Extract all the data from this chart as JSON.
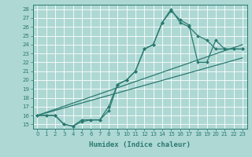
{
  "bg_color": "#aed8d4",
  "grid_color": "#ffffff",
  "line_color": "#2a7a70",
  "xlabel": "Humidex (Indice chaleur)",
  "xlim": [
    -0.5,
    23.5
  ],
  "ylim": [
    14.5,
    28.5
  ],
  "yticks": [
    15,
    16,
    17,
    18,
    19,
    20,
    21,
    22,
    23,
    24,
    25,
    26,
    27,
    28
  ],
  "xticks": [
    0,
    1,
    2,
    3,
    4,
    5,
    6,
    7,
    8,
    9,
    10,
    11,
    12,
    13,
    14,
    15,
    16,
    17,
    18,
    19,
    20,
    21,
    22,
    23
  ],
  "curve1_x": [
    0,
    1,
    2,
    3,
    4,
    5,
    6,
    7,
    8,
    9,
    10,
    11,
    12,
    13,
    14,
    15,
    16,
    17,
    18,
    19,
    20,
    21,
    22,
    23
  ],
  "curve1_y": [
    16.0,
    16.0,
    16.0,
    15.0,
    14.8,
    15.5,
    15.5,
    15.5,
    16.5,
    19.5,
    20.0,
    21.0,
    23.5,
    24.0,
    26.5,
    28.0,
    26.5,
    26.0,
    25.0,
    24.5,
    23.5,
    23.5,
    23.5,
    23.5
  ],
  "curve2_x": [
    0,
    1,
    2,
    3,
    4,
    5,
    6,
    7,
    8,
    9,
    10,
    11,
    12,
    13,
    14,
    15,
    16,
    17,
    18,
    19,
    20,
    21,
    22,
    23
  ],
  "curve2_y": [
    16.0,
    16.0,
    16.0,
    15.0,
    14.8,
    15.3,
    15.5,
    15.5,
    17.0,
    19.5,
    20.0,
    21.0,
    23.5,
    24.0,
    26.5,
    27.8,
    26.8,
    26.2,
    22.0,
    22.0,
    24.5,
    23.5,
    23.5,
    23.5
  ],
  "line1_x": [
    0,
    23
  ],
  "line1_y": [
    16.0,
    24.0
  ],
  "line2_x": [
    0,
    23
  ],
  "line2_y": [
    16.0,
    22.5
  ],
  "xlabel_fontsize": 6.5,
  "tick_fontsize": 5.0
}
